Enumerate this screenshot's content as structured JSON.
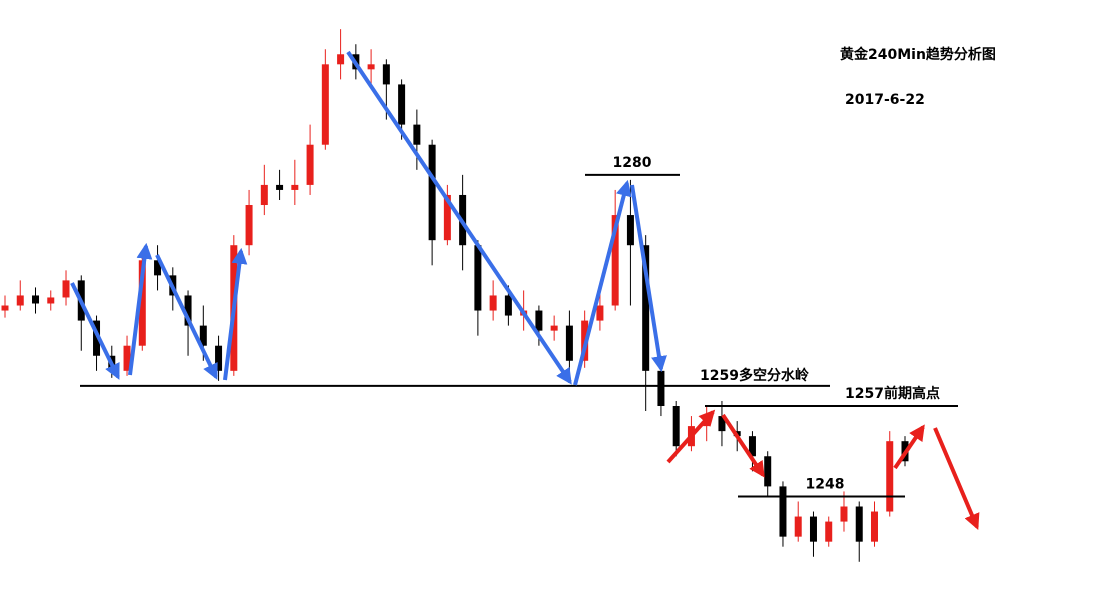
{
  "chart_data": {
    "type": "candlestick",
    "title": "黄金240Min趋势分析图",
    "subtitle": "2017-6-22",
    "ylim": [
      1237,
      1297.4
    ],
    "up_color": "#e8201c",
    "down_color": "#000000",
    "open": [
      1266.5,
      1267.0,
      1268.0,
      1267.2,
      1267.8,
      1269.5,
      1265.5,
      1262.0,
      1260.5,
      1263.0,
      1271.5,
      1270.0,
      1268.0,
      1265.0,
      1263.0,
      1260.5,
      1273.0,
      1277.0,
      1279.0,
      1278.5,
      1279.0,
      1283.0,
      1291.0,
      1292.0,
      1290.5,
      1291.0,
      1289.0,
      1285.0,
      1283.0,
      1273.5,
      1278.0,
      1273.0,
      1266.5,
      1268.0,
      1266.0,
      1266.5,
      1264.5,
      1265.0,
      1261.5,
      1265.5,
      1267.0,
      1276.0,
      1273.0,
      1260.5,
      1257.0,
      1253.0,
      1255.0,
      1256.0,
      1254.5,
      1254.0,
      1252.0,
      1249.0,
      1244.0,
      1246.0,
      1243.5,
      1245.5,
      1247.0,
      1243.5,
      1246.5,
      1253.5
    ],
    "high": [
      1268.0,
      1269.5,
      1268.8,
      1268.5,
      1270.5,
      1270.0,
      1266.0,
      1263.0,
      1264.0,
      1272.5,
      1273.0,
      1270.8,
      1268.5,
      1267.0,
      1264.0,
      1274.0,
      1278.5,
      1281.0,
      1280.5,
      1281.5,
      1285.0,
      1292.5,
      1294.5,
      1293.0,
      1292.5,
      1291.5,
      1289.5,
      1286.5,
      1283.5,
      1279.0,
      1280.0,
      1273.5,
      1269.5,
      1269.0,
      1268.5,
      1267.0,
      1266.0,
      1266.5,
      1266.5,
      1268.5,
      1278.5,
      1279.5,
      1274.0,
      1262.0,
      1257.5,
      1256.0,
      1257.0,
      1257.5,
      1255.5,
      1254.5,
      1252.5,
      1249.5,
      1247.5,
      1246.5,
      1246.0,
      1248.5,
      1247.5,
      1247.5,
      1254.5,
      1254.0
    ],
    "low": [
      1265.8,
      1266.5,
      1266.2,
      1266.5,
      1267.0,
      1262.5,
      1260.5,
      1259.8,
      1260.0,
      1262.5,
      1268.5,
      1266.5,
      1262.0,
      1261.5,
      1259.5,
      1260.0,
      1272.0,
      1276.0,
      1277.5,
      1277.0,
      1278.0,
      1282.5,
      1289.5,
      1289.5,
      1289.0,
      1285.5,
      1283.5,
      1280.5,
      1271.0,
      1273.0,
      1270.5,
      1264.0,
      1265.5,
      1265.0,
      1264.5,
      1263.0,
      1263.5,
      1260.5,
      1260.8,
      1264.5,
      1266.5,
      1267.0,
      1256.5,
      1256.0,
      1252.0,
      1252.5,
      1253.5,
      1253.0,
      1252.5,
      1250.5,
      1248.0,
      1243.0,
      1243.5,
      1242.0,
      1243.0,
      1244.5,
      1241.5,
      1243.0,
      1246.0,
      1251.0
    ],
    "close": [
      1267.0,
      1268.0,
      1267.2,
      1267.8,
      1269.5,
      1265.5,
      1262.0,
      1260.5,
      1263.0,
      1271.5,
      1270.0,
      1268.0,
      1265.0,
      1263.0,
      1260.5,
      1273.0,
      1277.0,
      1279.0,
      1278.5,
      1279.0,
      1283.0,
      1291.0,
      1292.0,
      1290.5,
      1291.0,
      1289.0,
      1285.0,
      1283.0,
      1273.5,
      1278.0,
      1273.0,
      1266.5,
      1268.0,
      1266.0,
      1266.5,
      1264.5,
      1265.0,
      1261.5,
      1265.5,
      1267.0,
      1276.0,
      1273.0,
      1260.5,
      1257.0,
      1253.0,
      1255.0,
      1256.0,
      1254.5,
      1254.0,
      1252.0,
      1249.0,
      1244.0,
      1246.0,
      1243.5,
      1245.5,
      1247.0,
      1243.5,
      1246.5,
      1253.5,
      1251.5
    ],
    "annotations": [
      {
        "label": "1280",
        "value": 1280
      },
      {
        "label": "1259多空分水岭",
        "value": 1259
      },
      {
        "label": "1257前期高点",
        "value": 1257
      },
      {
        "label": "1248",
        "value": 1248
      }
    ]
  }
}
